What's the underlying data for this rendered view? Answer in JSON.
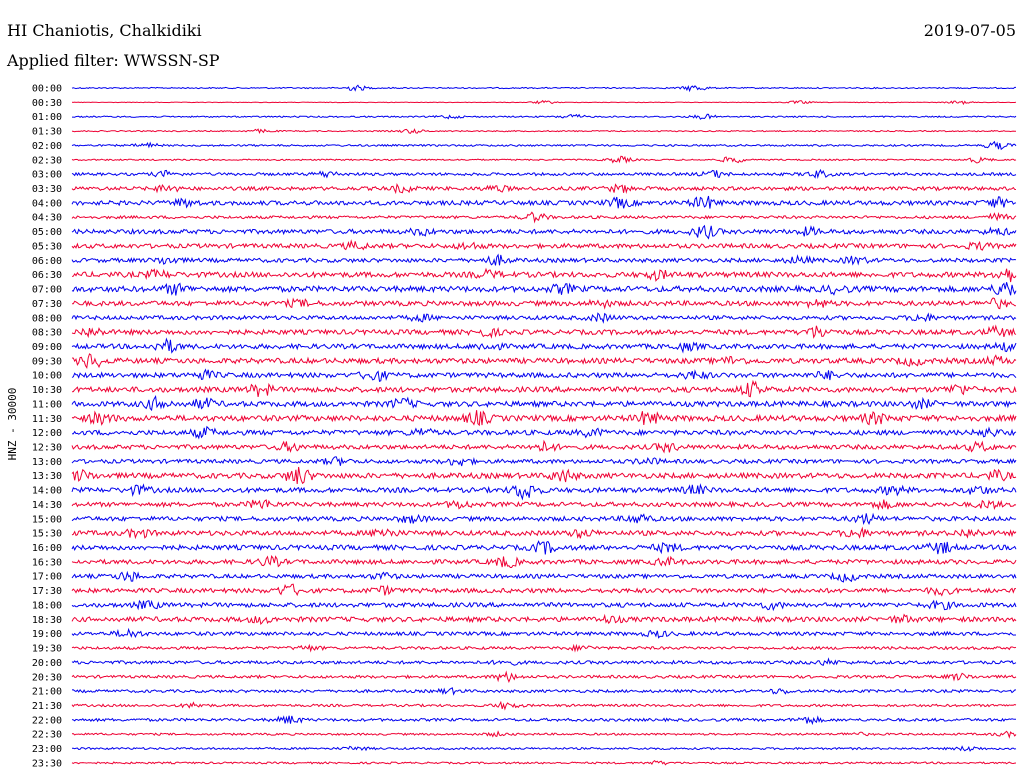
{
  "header": {
    "station": "HI Chaniotis, Chalkidiki",
    "date": "2019-07-05",
    "filter": "Applied filter: WWSSN-SP"
  },
  "chart_data": {
    "type": "line",
    "title": "HI Chaniotis, Chalkidiki",
    "ylabel": "HNZ - 30000",
    "row_labels": [
      "00:00",
      "00:30",
      "01:00",
      "01:30",
      "02:00",
      "02:30",
      "03:00",
      "03:30",
      "04:00",
      "04:30",
      "05:00",
      "05:30",
      "06:00",
      "06:30",
      "07:00",
      "07:30",
      "08:00",
      "08:30",
      "09:00",
      "09:30",
      "10:00",
      "10:30",
      "11:00",
      "11:30",
      "12:00",
      "12:30",
      "13:00",
      "13:30",
      "14:00",
      "14:30",
      "15:00",
      "15:30",
      "16:00",
      "16:30",
      "17:00",
      "17:30",
      "18:00",
      "18:30",
      "19:00",
      "19:30",
      "20:00",
      "20:30",
      "21:00",
      "21:30",
      "22:00",
      "22:30",
      "23:00",
      "23:30"
    ],
    "row_colors": [
      "#0000ee",
      "#ee0033"
    ],
    "rows": [
      {
        "noise": 0.6,
        "events": [
          [
            0.3,
            2.5
          ],
          [
            0.66,
            3.0
          ]
        ]
      },
      {
        "noise": 0.3,
        "events": [
          [
            0.5,
            1.5
          ],
          [
            0.77,
            1.5
          ],
          [
            0.94,
            1.5
          ]
        ]
      },
      {
        "noise": 0.7,
        "events": [
          [
            0.4,
            1.5
          ],
          [
            0.53,
            2.0
          ],
          [
            0.67,
            2.0
          ]
        ]
      },
      {
        "noise": 0.6,
        "events": [
          [
            0.36,
            2.0
          ],
          [
            0.2,
            1.5
          ]
        ]
      },
      {
        "noise": 0.9,
        "events": [
          [
            0.08,
            2.0
          ],
          [
            0.98,
            3.5
          ]
        ]
      },
      {
        "noise": 0.7,
        "events": [
          [
            0.58,
            3.0
          ],
          [
            0.7,
            3.0
          ],
          [
            0.96,
            2.5
          ]
        ]
      },
      {
        "noise": 1.4,
        "events": [
          [
            0.1,
            2.5
          ],
          [
            0.27,
            2.5
          ],
          [
            0.68,
            3.0
          ],
          [
            0.79,
            3.0
          ]
        ]
      },
      {
        "noise": 1.8,
        "events": [
          [
            0.1,
            3.0
          ],
          [
            0.35,
            3.0
          ],
          [
            0.45,
            2.5
          ],
          [
            0.58,
            3.0
          ]
        ]
      },
      {
        "noise": 2.2,
        "events": [
          [
            0.12,
            3.0
          ],
          [
            0.58,
            4.0
          ],
          [
            0.67,
            5.5
          ],
          [
            0.98,
            4.0
          ]
        ]
      },
      {
        "noise": 1.4,
        "events": [
          [
            0.49,
            4.0
          ],
          [
            0.98,
            3.0
          ]
        ]
      },
      {
        "noise": 2.2,
        "events": [
          [
            0.37,
            2.5
          ],
          [
            0.67,
            5.5
          ],
          [
            0.78,
            3.0
          ],
          [
            0.98,
            2.5
          ]
        ]
      },
      {
        "noise": 2.2,
        "events": [
          [
            0.3,
            3.0
          ],
          [
            0.42,
            2.5
          ],
          [
            0.96,
            2.5
          ]
        ]
      },
      {
        "noise": 2.0,
        "events": [
          [
            0.1,
            3.0
          ],
          [
            0.45,
            4.0
          ],
          [
            0.77,
            3.0
          ],
          [
            0.83,
            3.0
          ]
        ]
      },
      {
        "noise": 2.6,
        "events": [
          [
            0.09,
            3.0
          ],
          [
            0.44,
            3.0
          ],
          [
            0.62,
            3.5
          ],
          [
            0.99,
            6.0
          ]
        ]
      },
      {
        "noise": 2.8,
        "events": [
          [
            0.11,
            4.0
          ],
          [
            0.52,
            3.5
          ],
          [
            0.81,
            3.0
          ],
          [
            0.99,
            7.0
          ]
        ]
      },
      {
        "noise": 2.4,
        "events": [
          [
            0.24,
            2.5
          ],
          [
            0.56,
            2.5
          ],
          [
            0.79,
            3.0
          ],
          [
            0.98,
            3.5
          ]
        ]
      },
      {
        "noise": 2.0,
        "events": [
          [
            0.37,
            2.5
          ],
          [
            0.56,
            3.0
          ],
          [
            0.9,
            3.0
          ]
        ]
      },
      {
        "noise": 2.4,
        "events": [
          [
            0.02,
            3.5
          ],
          [
            0.44,
            3.0
          ],
          [
            0.79,
            5.0
          ],
          [
            0.98,
            4.0
          ]
        ]
      },
      {
        "noise": 2.4,
        "events": [
          [
            0.1,
            5.5
          ],
          [
            0.44,
            3.0
          ],
          [
            0.65,
            3.0
          ],
          [
            0.99,
            3.0
          ]
        ]
      },
      {
        "noise": 2.6,
        "events": [
          [
            0.02,
            6.0
          ],
          [
            0.7,
            3.0
          ],
          [
            0.89,
            3.0
          ],
          [
            0.98,
            3.0
          ]
        ]
      },
      {
        "noise": 2.4,
        "events": [
          [
            0.14,
            3.5
          ],
          [
            0.32,
            5.0
          ],
          [
            0.66,
            3.0
          ],
          [
            0.8,
            3.0
          ]
        ]
      },
      {
        "noise": 2.6,
        "events": [
          [
            0.2,
            5.0
          ],
          [
            0.72,
            6.0
          ],
          [
            0.94,
            4.0
          ]
        ]
      },
      {
        "noise": 2.6,
        "events": [
          [
            0.09,
            5.0
          ],
          [
            0.14,
            4.0
          ],
          [
            0.35,
            4.0
          ],
          [
            0.9,
            3.0
          ]
        ]
      },
      {
        "noise": 2.8,
        "events": [
          [
            0.03,
            4.5
          ],
          [
            0.43,
            5.5
          ],
          [
            0.61,
            5.5
          ],
          [
            0.85,
            4.5
          ]
        ]
      },
      {
        "noise": 2.4,
        "events": [
          [
            0.14,
            4.0
          ],
          [
            0.37,
            3.0
          ],
          [
            0.55,
            3.0
          ],
          [
            0.97,
            3.0
          ]
        ]
      },
      {
        "noise": 2.2,
        "events": [
          [
            0.23,
            3.5
          ],
          [
            0.5,
            4.0
          ],
          [
            0.63,
            3.5
          ],
          [
            0.96,
            3.5
          ]
        ]
      },
      {
        "noise": 2.0,
        "events": [
          [
            0.28,
            3.0
          ],
          [
            0.41,
            3.5
          ],
          [
            0.61,
            2.5
          ]
        ]
      },
      {
        "noise": 2.6,
        "events": [
          [
            0.01,
            4.0
          ],
          [
            0.24,
            8.0
          ],
          [
            0.52,
            5.0
          ],
          [
            0.98,
            3.5
          ]
        ]
      },
      {
        "noise": 2.4,
        "events": [
          [
            0.07,
            3.5
          ],
          [
            0.48,
            8.0
          ],
          [
            0.66,
            3.5
          ],
          [
            0.87,
            3.5
          ],
          [
            0.96,
            3.5
          ]
        ]
      },
      {
        "noise": 2.2,
        "events": [
          [
            0.2,
            4.0
          ],
          [
            0.41,
            3.0
          ],
          [
            0.86,
            3.0
          ],
          [
            0.97,
            3.0
          ]
        ]
      },
      {
        "noise": 2.2,
        "events": [
          [
            0.36,
            3.0
          ],
          [
            0.6,
            4.0
          ],
          [
            0.84,
            4.0
          ]
        ]
      },
      {
        "noise": 2.4,
        "events": [
          [
            0.07,
            3.5
          ],
          [
            0.33,
            4.0
          ],
          [
            0.54,
            3.0
          ],
          [
            0.83,
            4.0
          ],
          [
            0.95,
            3.0
          ]
        ]
      },
      {
        "noise": 2.4,
        "events": [
          [
            0.5,
            5.0
          ],
          [
            0.63,
            3.5
          ],
          [
            0.92,
            5.0
          ]
        ]
      },
      {
        "noise": 2.2,
        "events": [
          [
            0.21,
            4.0
          ],
          [
            0.46,
            4.5
          ],
          [
            0.63,
            3.0
          ]
        ]
      },
      {
        "noise": 2.0,
        "events": [
          [
            0.06,
            4.0
          ],
          [
            0.33,
            2.5
          ],
          [
            0.82,
            4.0
          ]
        ]
      },
      {
        "noise": 2.2,
        "events": [
          [
            0.23,
            5.0
          ],
          [
            0.33,
            3.0
          ],
          [
            0.92,
            3.0
          ]
        ]
      },
      {
        "noise": 2.2,
        "events": [
          [
            0.08,
            3.0
          ],
          [
            0.74,
            3.0
          ],
          [
            0.92,
            3.0
          ]
        ]
      },
      {
        "noise": 2.4,
        "events": [
          [
            0.2,
            2.5
          ],
          [
            0.57,
            2.5
          ],
          [
            0.88,
            2.5
          ]
        ]
      },
      {
        "noise": 1.8,
        "events": [
          [
            0.06,
            3.5
          ],
          [
            0.62,
            2.5
          ]
        ]
      },
      {
        "noise": 1.4,
        "events": [
          [
            0.25,
            2.0
          ],
          [
            0.54,
            2.0
          ]
        ]
      },
      {
        "noise": 1.6,
        "events": [
          [
            0.46,
            2.0
          ],
          [
            0.8,
            2.0
          ]
        ]
      },
      {
        "noise": 1.4,
        "events": [
          [
            0.46,
            4.0
          ],
          [
            0.94,
            2.5
          ]
        ]
      },
      {
        "noise": 1.4,
        "events": [
          [
            0.4,
            2.0
          ],
          [
            0.75,
            2.0
          ]
        ]
      },
      {
        "noise": 1.2,
        "events": [
          [
            0.46,
            3.0
          ],
          [
            0.13,
            2.0
          ]
        ]
      },
      {
        "noise": 1.4,
        "events": [
          [
            0.23,
            3.5
          ],
          [
            0.78,
            3.0
          ]
        ]
      },
      {
        "noise": 1.0,
        "events": [
          [
            0.45,
            1.5
          ],
          [
            0.83,
            1.5
          ],
          [
            0.99,
            2.0
          ]
        ]
      },
      {
        "noise": 1.0,
        "events": [
          [
            0.3,
            1.5
          ],
          [
            0.95,
            2.0
          ]
        ]
      },
      {
        "noise": 0.9,
        "events": [
          [
            0.62,
            1.5
          ]
        ]
      }
    ]
  }
}
